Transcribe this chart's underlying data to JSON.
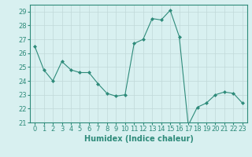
{
  "x": [
    0,
    1,
    2,
    3,
    4,
    5,
    6,
    7,
    8,
    9,
    10,
    11,
    12,
    13,
    14,
    15,
    16,
    17,
    18,
    19,
    20,
    21,
    22,
    23
  ],
  "y": [
    26.5,
    24.8,
    24.0,
    25.4,
    24.8,
    24.6,
    24.6,
    23.8,
    23.1,
    22.9,
    23.0,
    26.7,
    27.0,
    28.5,
    28.4,
    29.1,
    27.2,
    20.8,
    22.1,
    22.4,
    23.0,
    23.2,
    23.1,
    22.4
  ],
  "line_color": "#2e8b7a",
  "marker": "D",
  "marker_size": 2,
  "bg_color": "#d8f0f0",
  "grid_color": "#c0d8d8",
  "xlabel": "Humidex (Indice chaleur)",
  "xlim": [
    -0.5,
    23.5
  ],
  "ylim": [
    21,
    29.5
  ],
  "yticks": [
    21,
    22,
    23,
    24,
    25,
    26,
    27,
    28,
    29
  ],
  "xticks": [
    0,
    1,
    2,
    3,
    4,
    5,
    6,
    7,
    8,
    9,
    10,
    11,
    12,
    13,
    14,
    15,
    16,
    17,
    18,
    19,
    20,
    21,
    22,
    23
  ],
  "label_fontsize": 7,
  "tick_fontsize": 6
}
